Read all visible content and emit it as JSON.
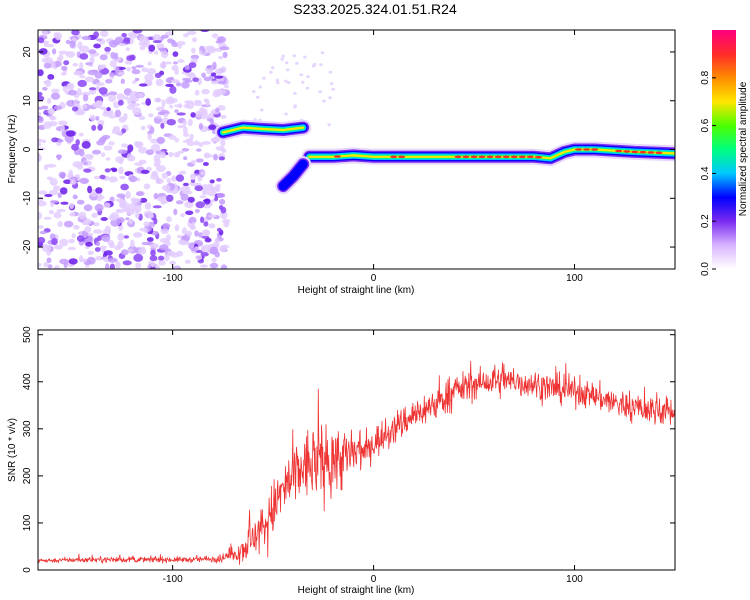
{
  "figure_title": "S233.2025.324.01.51.R24",
  "chart_data": [
    {
      "type": "heatmap",
      "xlabel": "Height of straight line (km)",
      "ylabel": "Frequency (Hz)",
      "xlim": [
        -167,
        150
      ],
      "ylim": [
        -24.5,
        24.5
      ],
      "xticks": [
        -100,
        0,
        100
      ],
      "xtick_labels": [
        "-100",
        "0",
        "100"
      ],
      "yticks": [
        -20,
        -10,
        0,
        10,
        20
      ],
      "ytick_labels": [
        "-20",
        "-10",
        "0",
        "10",
        "20"
      ],
      "colorbar": {
        "label": "Normalized spectral amplitude",
        "range": [
          0,
          1
        ],
        "ticks": [
          0,
          0.2,
          0.4,
          0.6,
          0.8
        ],
        "tick_labels": [
          "0.0",
          "0.2",
          "0.4",
          "0.6",
          "0.8"
        ],
        "colors": [
          "#ffffff",
          "#d7b4ff",
          "#7a2bf0",
          "#0000ff",
          "#00c8ff",
          "#00ff80",
          "#4cff00",
          "#ffe600",
          "#ff8c00",
          "#ff2a2a",
          "#ff007f"
        ]
      },
      "noise_region_x": [
        -167,
        -73
      ],
      "features": [
        {
          "name": "upper-band",
          "x": [
            -75,
            -65,
            -55,
            -45,
            -35
          ],
          "y": [
            3.5,
            4.5,
            4.2,
            4.0,
            4.5
          ],
          "amplitude": 0.45
        },
        {
          "name": "main-trace",
          "x": [
            -32,
            -20,
            -10,
            0,
            10,
            20,
            40,
            60,
            80,
            88,
            95,
            100,
            110,
            130,
            150
          ],
          "y": [
            -1.5,
            -1.5,
            -1.2,
            -1.5,
            -1.5,
            -1.5,
            -1.5,
            -1.5,
            -1.5,
            -1.8,
            -0.5,
            0.0,
            0.0,
            -0.5,
            -0.8
          ],
          "amplitude": 0.85
        },
        {
          "name": "lower-tail",
          "x": [
            -45,
            -40,
            -35
          ],
          "y": [
            -7.5,
            -5.5,
            -3.0
          ],
          "amplitude": 0.3
        }
      ]
    },
    {
      "type": "line",
      "xlabel": "Height of straight line (km)",
      "ylabel": "SNR (10 * v/v)",
      "xlim": [
        -167,
        150
      ],
      "ylim": [
        0,
        510
      ],
      "xticks": [
        -100,
        0,
        100
      ],
      "xtick_labels": [
        "-100",
        "0",
        "100"
      ],
      "yticks": [
        0,
        100,
        200,
        300,
        400,
        500
      ],
      "ytick_labels": [
        "0",
        "100",
        "200",
        "300",
        "400",
        "500"
      ],
      "color": "#ee3333",
      "series": [
        {
          "name": "SNR",
          "x": [
            -167,
            -140,
            -110,
            -90,
            -75,
            -65,
            -55,
            -45,
            -35,
            -25,
            -15,
            -5,
            0,
            10,
            20,
            30,
            40,
            50,
            60,
            70,
            80,
            90,
            100,
            110,
            120,
            130,
            140,
            150
          ],
          "values": [
            20,
            22,
            22,
            22,
            25,
            45,
            90,
            170,
            220,
            230,
            240,
            250,
            270,
            300,
            330,
            350,
            380,
            395,
            400,
            400,
            395,
            385,
            380,
            370,
            355,
            345,
            340,
            335
          ],
          "noise": [
            8,
            10,
            10,
            10,
            15,
            50,
            90,
            110,
            130,
            140,
            120,
            80,
            60,
            60,
            60,
            60,
            60,
            55,
            55,
            55,
            55,
            55,
            50,
            50,
            55,
            55,
            55,
            60
          ]
        }
      ]
    }
  ]
}
